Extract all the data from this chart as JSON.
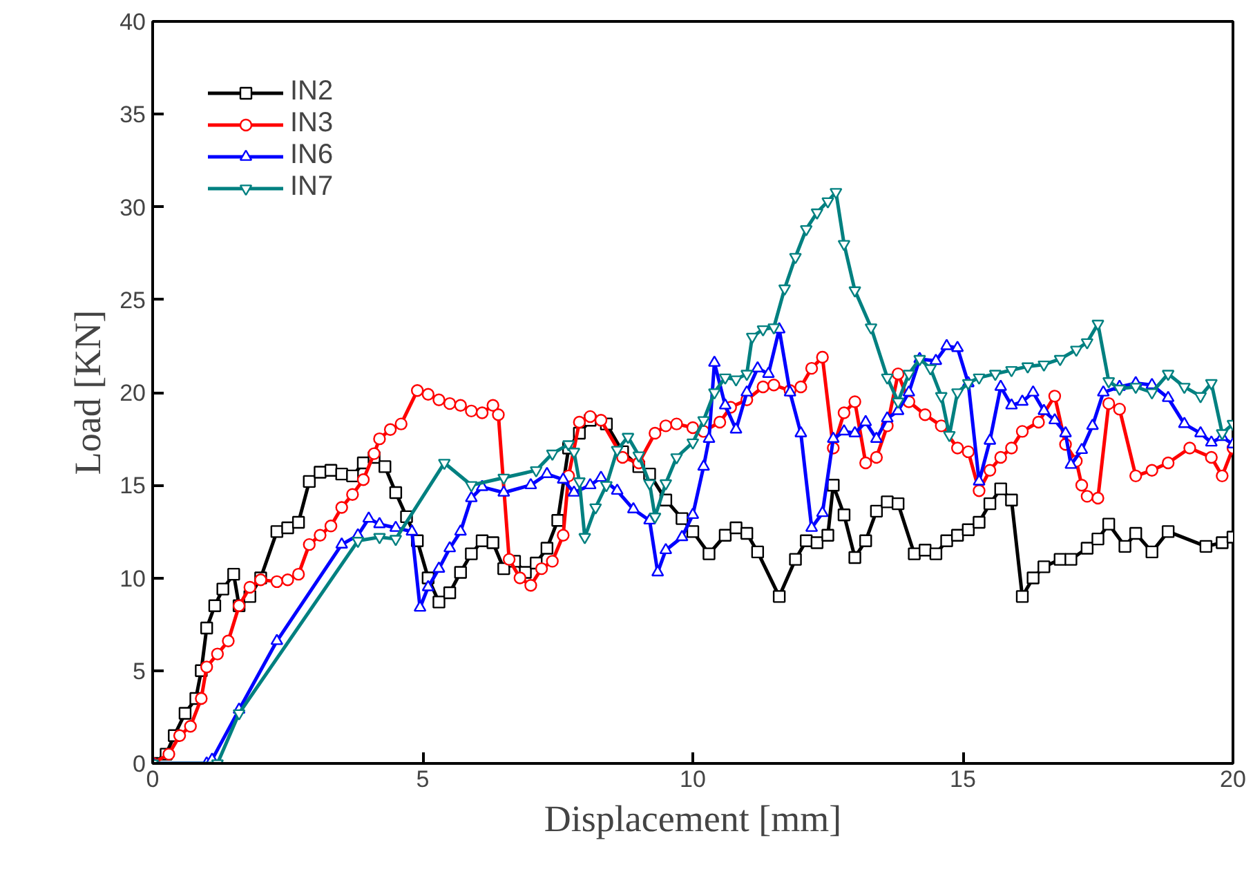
{
  "chart_data": {
    "type": "line",
    "xlabel": "Displacement [mm]",
    "ylabel": "Load [KN]",
    "xlim": [
      0,
      20
    ],
    "ylim": [
      0,
      40
    ],
    "xticks": [
      0,
      5,
      10,
      15,
      20
    ],
    "yticks": [
      0,
      5,
      10,
      15,
      20,
      25,
      30,
      35,
      40
    ],
    "grid": false,
    "legend": "top left",
    "line_style": "solid",
    "series": [
      {
        "name": "IN2",
        "color": "#000000",
        "marker": "square",
        "x": [
          0,
          0.25,
          0.4,
          0.6,
          0.8,
          0.9,
          1.0,
          1.15,
          1.3,
          1.5,
          1.6,
          1.8,
          2.0,
          2.3,
          2.5,
          2.7,
          2.9,
          3.1,
          3.3,
          3.5,
          3.7,
          3.9,
          4.1,
          4.3,
          4.5,
          4.7,
          4.9,
          5.1,
          5.3,
          5.5,
          5.7,
          5.9,
          6.1,
          6.3,
          6.5,
          6.7,
          6.9,
          7.1,
          7.3,
          7.5,
          7.7,
          7.9,
          8.1,
          8.4,
          8.7,
          9.0,
          9.2,
          9.5,
          9.8,
          10.0,
          10.3,
          10.6,
          10.8,
          11.0,
          11.2,
          11.6,
          11.9,
          12.1,
          12.3,
          12.5,
          12.6,
          12.8,
          13.0,
          13.2,
          13.4,
          13.6,
          13.8,
          14.1,
          14.3,
          14.5,
          14.7,
          14.9,
          15.1,
          15.3,
          15.5,
          15.7,
          15.9,
          16.1,
          16.3,
          16.5,
          16.8,
          17.0,
          17.3,
          17.5,
          17.7,
          18.0,
          18.2,
          18.5,
          18.8,
          19.5,
          19.8,
          20
        ],
        "values": [
          0,
          0.5,
          1.5,
          2.7,
          3.5,
          5,
          7.3,
          8.5,
          9.4,
          10.2,
          8.5,
          9.0,
          10,
          12.5,
          12.7,
          13,
          15.2,
          15.7,
          15.8,
          15.6,
          15.5,
          16.2,
          16.5,
          16,
          14.6,
          13.3,
          12,
          10,
          8.7,
          9.2,
          10.3,
          11.3,
          12,
          11.9,
          10.5,
          10.9,
          10.3,
          10.8,
          11.6,
          13.1,
          17,
          17.8,
          18.5,
          18.3,
          16.8,
          16,
          15.6,
          14.2,
          13.2,
          12.5,
          11.3,
          12.3,
          12.7,
          12.4,
          11.4,
          9.0,
          11.0,
          12,
          11.9,
          12.3,
          15,
          13.4,
          11.1,
          12.0,
          13.6,
          14.1,
          14,
          11.3,
          11.5,
          11.3,
          12.0,
          12.3,
          12.6,
          13,
          14.0,
          14.8,
          14.2,
          9.0,
          10,
          10.6,
          11,
          11.0,
          11.6,
          12.1,
          12.9,
          11.7,
          12.4,
          11.4,
          12.5,
          11.7,
          11.9,
          12.2
        ]
      },
      {
        "name": "IN3",
        "color": "#ff0000",
        "marker": "circle",
        "x": [
          0,
          0.3,
          0.5,
          0.7,
          0.9,
          1.0,
          1.2,
          1.4,
          1.6,
          1.8,
          2.0,
          2.3,
          2.5,
          2.7,
          2.9,
          3.1,
          3.3,
          3.5,
          3.7,
          3.9,
          4.1,
          4.2,
          4.4,
          4.6,
          4.9,
          5.1,
          5.3,
          5.5,
          5.7,
          5.9,
          6.1,
          6.3,
          6.4,
          6.6,
          6.8,
          7.0,
          7.2,
          7.4,
          7.6,
          7.7,
          7.9,
          8.1,
          8.3,
          8.7,
          9.0,
          9.3,
          9.5,
          9.7,
          10.0,
          10.2,
          10.5,
          10.7,
          11.0,
          11.3,
          11.5,
          11.8,
          12.0,
          12.2,
          12.4,
          12.6,
          12.8,
          13.0,
          13.2,
          13.4,
          13.6,
          13.8,
          14.0,
          14.3,
          14.6,
          14.9,
          15.1,
          15.3,
          15.5,
          15.7,
          15.9,
          16.1,
          16.4,
          16.7,
          16.9,
          17.1,
          17.2,
          17.3,
          17.5,
          17.7,
          17.9,
          18.2,
          18.5,
          18.8,
          19.2,
          19.6,
          19.8,
          20
        ],
        "values": [
          0,
          0.5,
          1.5,
          2,
          3.5,
          5.2,
          5.9,
          6.6,
          8.5,
          9.5,
          9.9,
          9.8,
          9.9,
          10.2,
          11.8,
          12.3,
          12.8,
          13.8,
          14.5,
          15.3,
          16.7,
          17.5,
          18,
          18.3,
          20.1,
          19.9,
          19.6,
          19.4,
          19.3,
          19.0,
          18.9,
          19.3,
          18.8,
          11,
          10,
          9.6,
          10.5,
          10.9,
          12.3,
          15.5,
          18.4,
          18.7,
          18.5,
          16.5,
          16.2,
          17.8,
          18.2,
          18.3,
          18.1,
          17.9,
          18.4,
          19.2,
          19.6,
          20.3,
          20.4,
          20.1,
          20.3,
          21.3,
          21.9,
          17,
          18.9,
          19.5,
          16.2,
          16.5,
          18.2,
          21.0,
          19.5,
          18.8,
          18.2,
          17.0,
          16.8,
          14.7,
          15.8,
          16.5,
          17.0,
          17.9,
          18.4,
          19.8,
          17.2,
          16.3,
          15.0,
          14.4,
          14.3,
          19.4,
          19.1,
          15.5,
          15.8,
          16.2,
          17.0,
          16.5,
          15.5,
          17.0
        ]
      },
      {
        "name": "IN6",
        "color": "#0000ff",
        "marker": "triangle",
        "x": [
          0,
          1.0,
          1.1,
          1.6,
          2.3,
          3.5,
          3.8,
          4.0,
          4.2,
          4.5,
          4.8,
          4.95,
          5.1,
          5.3,
          5.5,
          5.7,
          5.9,
          6.1,
          6.5,
          7.0,
          7.3,
          7.6,
          7.8,
          8.1,
          8.3,
          8.6,
          8.9,
          9.2,
          9.35,
          9.5,
          9.8,
          10.0,
          10.2,
          10.3,
          10.4,
          10.6,
          10.8,
          11.0,
          11.2,
          11.4,
          11.6,
          11.8,
          12.0,
          12.2,
          12.4,
          12.6,
          12.8,
          13.0,
          13.2,
          13.4,
          13.6,
          13.8,
          14.0,
          14.2,
          14.5,
          14.7,
          14.9,
          15.1,
          15.3,
          15.5,
          15.7,
          15.9,
          16.1,
          16.3,
          16.5,
          16.7,
          16.9,
          17.0,
          17.2,
          17.4,
          17.6,
          17.9,
          18.2,
          18.5,
          18.8,
          19.1,
          19.4,
          19.6,
          19.8,
          20
        ],
        "values": [
          0,
          0,
          0.2,
          2.9,
          6.6,
          11.8,
          12.3,
          13.2,
          12.9,
          12.7,
          12.5,
          8.4,
          9.5,
          10.5,
          11.6,
          12.5,
          14.3,
          14.9,
          14.6,
          15.0,
          15.6,
          15.3,
          14.6,
          15.0,
          15.4,
          14.7,
          13.7,
          13.1,
          10.3,
          11.5,
          12.2,
          13.4,
          16.0,
          17.5,
          21.6,
          19.3,
          18.0,
          20.0,
          21.3,
          21.0,
          23.4,
          20.0,
          17.8,
          12.7,
          13.5,
          17.5,
          17.9,
          17.8,
          18.4,
          17.5,
          18.6,
          19.0,
          20.0,
          21.8,
          21.7,
          22.5,
          22.4,
          20.5,
          15.2,
          17.4,
          20.3,
          19.3,
          19.5,
          20.0,
          19.0,
          18.5,
          17.8,
          16.1,
          16.9,
          18.2,
          20.0,
          20.3,
          20.5,
          20.4,
          19.7,
          18.3,
          17.8,
          17.3,
          17.6,
          17.2
        ]
      },
      {
        "name": "IN7",
        "color": "#008080",
        "marker": "triangle_down",
        "x": [
          0,
          1.2,
          1.6,
          3.8,
          4.2,
          4.5,
          5.4,
          5.9,
          6.5,
          7.1,
          7.4,
          7.7,
          7.8,
          7.9,
          8.0,
          8.2,
          8.4,
          8.6,
          8.8,
          9.0,
          9.2,
          9.3,
          9.5,
          9.7,
          10.0,
          10.2,
          10.4,
          10.6,
          10.8,
          11.0,
          11.1,
          11.3,
          11.5,
          11.7,
          11.9,
          12.1,
          12.3,
          12.5,
          12.65,
          12.8,
          13.0,
          13.3,
          13.6,
          13.8,
          14.0,
          14.2,
          14.4,
          14.6,
          14.75,
          14.9,
          15.1,
          15.3,
          15.6,
          15.9,
          16.2,
          16.5,
          16.8,
          17.1,
          17.3,
          17.5,
          17.7,
          17.9,
          18.2,
          18.5,
          18.8,
          19.1,
          19.4,
          19.6,
          19.8,
          20
        ],
        "values": [
          0,
          0,
          2.7,
          12.0,
          12.2,
          12.1,
          16.2,
          15.0,
          15.4,
          15.8,
          16.7,
          17.2,
          16.8,
          15.2,
          12.2,
          13.8,
          15.0,
          16.9,
          17.6,
          16.6,
          15.1,
          13.3,
          15.1,
          16.5,
          17.3,
          18.5,
          20.0,
          20.8,
          20.7,
          21.0,
          23.0,
          23.4,
          23.5,
          25.6,
          27.3,
          28.8,
          29.7,
          30.3,
          30.8,
          28.0,
          25.5,
          23.5,
          20.8,
          19.5,
          21.0,
          21.8,
          21.3,
          19.8,
          17.7,
          20.0,
          20.5,
          20.8,
          21.0,
          21.2,
          21.4,
          21.5,
          21.8,
          22.3,
          22.7,
          23.7,
          20.6,
          20.2,
          20.3,
          20.0,
          21.0,
          20.3,
          19.8,
          20.5,
          17.8,
          18.3
        ]
      }
    ]
  }
}
